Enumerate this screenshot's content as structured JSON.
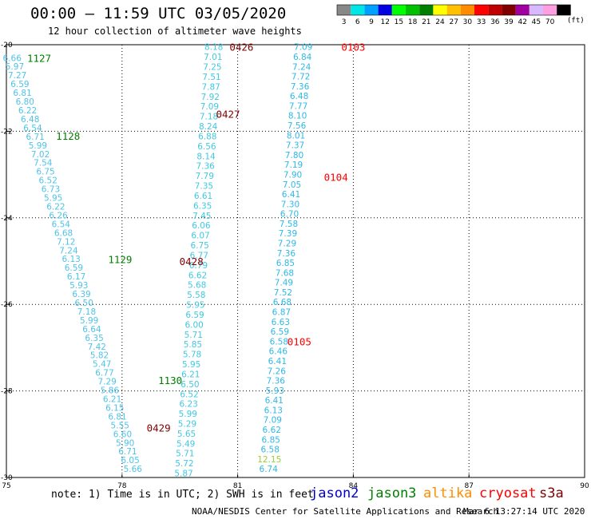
{
  "header": {
    "title": "00:00 – 11:59 UTC 03/05/2020",
    "subtitle": "12 hour collection of altimeter wave heights",
    "note": "note: 1) Time is in UTC; 2) SWH is in feet",
    "credit": "NOAA/NESDIS Center for Satellite Applications and Research",
    "timestamp": "Mar  6 13:27:14 UTC 2020"
  },
  "legend": {
    "unit": "(ft)",
    "bins": [
      {
        "label": "3",
        "color": "#888888"
      },
      {
        "label": "6",
        "color": "#00e5e5"
      },
      {
        "label": "9",
        "color": "#00a0ff"
      },
      {
        "label": "12",
        "color": "#0000e0"
      },
      {
        "label": "15",
        "color": "#00ff00"
      },
      {
        "label": "18",
        "color": "#00c000"
      },
      {
        "label": "21",
        "color": "#008000"
      },
      {
        "label": "24",
        "color": "#ffff00"
      },
      {
        "label": "27",
        "color": "#ffc000"
      },
      {
        "label": "30",
        "color": "#ff8c00"
      },
      {
        "label": "33",
        "color": "#ff0000"
      },
      {
        "label": "36",
        "color": "#c00000"
      },
      {
        "label": "39",
        "color": "#800000"
      },
      {
        "label": "42",
        "color": "#a000a0"
      },
      {
        "label": "45",
        "color": "#d8b8ff"
      },
      {
        "label": "70",
        "color": "#ff9ee0"
      },
      {
        "label": "",
        "color": "#000000"
      }
    ]
  },
  "satellites": [
    {
      "name": "jason2",
      "color": "#0000cc"
    },
    {
      "name": "jason3",
      "color": "#008000"
    },
    {
      "name": "altika",
      "color": "#ff8c00"
    },
    {
      "name": "cryosat",
      "color": "#ff0000"
    },
    {
      "name": "s3a",
      "color": "#800000"
    }
  ],
  "chart_data": {
    "type": "scatter",
    "xlim": [
      75,
      90
    ],
    "ylim": [
      -30,
      -20
    ],
    "x_ticks": [
      75,
      78,
      81,
      84,
      87,
      90
    ],
    "y_ticks": [
      -20,
      -22,
      -24,
      -26,
      -28,
      -30
    ],
    "grid": true,
    "tracks": [
      {
        "satellite": "jason3",
        "label_color": "#008000",
        "labels": [
          {
            "text": "1127",
            "lon": 75.85,
            "lat": -20.3
          },
          {
            "text": "1128",
            "lon": 76.6,
            "lat": -22.1
          },
          {
            "text": "1129",
            "lon": 77.95,
            "lat": -24.95
          },
          {
            "text": "1130",
            "lon": 79.25,
            "lat": -27.75
          }
        ],
        "start": [
          75.15,
          -20.3
        ],
        "end": [
          78.28,
          -29.8
        ],
        "values": [
          "6.66",
          "5.97",
          "7.27",
          "6.59",
          "6.81",
          "6.80",
          "6.22",
          "6.48",
          "6.54",
          "6.71",
          "5.99",
          "7.02",
          "7.54",
          "6.75",
          "6.52",
          "6.73",
          "5.95",
          "6.22",
          "6.26",
          "6.54",
          "6.68",
          "7.12",
          "7.24",
          "6.13",
          "6.59",
          "6.17",
          "5.93",
          "6.39",
          "6.50",
          "7.18",
          "5.99",
          "6.64",
          "6.35",
          "7.42",
          "5.82",
          "5.47",
          "6.77",
          "7.29",
          "5.86",
          "6.21",
          "6.15",
          "6.81",
          "5.55",
          "6.60",
          "5.90",
          "6.71",
          "6.05",
          "5.66"
        ]
      },
      {
        "satellite": "s3a",
        "label_color": "#800000",
        "labels": [
          {
            "text": "0426",
            "lon": 81.1,
            "lat": -20.05
          },
          {
            "text": "0427",
            "lon": 80.75,
            "lat": -21.6
          },
          {
            "text": "0428",
            "lon": 79.8,
            "lat": -25.0
          },
          {
            "text": "0429",
            "lon": 78.95,
            "lat": -28.85
          }
        ],
        "start": [
          80.38,
          -20.05
        ],
        "end": [
          79.6,
          -29.9
        ],
        "values": [
          "8.18",
          "7.01",
          "7.25",
          "7.51",
          "7.87",
          "7.92",
          "7.09",
          "7.18",
          "8.24",
          "6.88",
          "6.56",
          "8.14",
          "7.36",
          "7.79",
          "7.35",
          "6.61",
          "6.35",
          "7.45",
          "6.06",
          "6.07",
          "6.75",
          "6.77",
          "6.79",
          "6.62",
          "5.68",
          "5.58",
          "5.95",
          "6.59",
          "6.00",
          "5.71",
          "5.85",
          "5.78",
          "5.95",
          "6.21",
          "6.50",
          "6.52",
          "6.23",
          "5.99",
          "5.29",
          "5.65",
          "5.49",
          "5.71",
          "5.72",
          "5.87"
        ]
      },
      {
        "satellite": "cryosat",
        "label_color": "#ff0000",
        "labels": [
          {
            "text": "0103",
            "lon": 84.0,
            "lat": -20.05
          },
          {
            "text": "0104",
            "lon": 83.55,
            "lat": -23.05
          },
          {
            "text": "0105",
            "lon": 82.6,
            "lat": -26.85
          }
        ],
        "start": [
          82.7,
          -20.05
        ],
        "end": [
          81.8,
          -29.8
        ],
        "values": [
          "7.09",
          "6.84",
          "7.24",
          "7.72",
          "7.36",
          "6.48",
          "7.77",
          "8.10",
          "7.56",
          "8.01",
          "7.37",
          "7.80",
          "7.19",
          "7.90",
          "7.05",
          "6.41",
          "7.30",
          "6.70",
          "7.58",
          "7.39",
          "7.29",
          "7.36",
          "6.85",
          "7.68",
          "7.49",
          "7.52",
          "6.68",
          "6.87",
          "6.63",
          "6.59",
          "6.58",
          "6.46",
          "6.41",
          "7.26",
          "7.36",
          "5.93",
          "6.41",
          "6.13",
          "7.09",
          "6.62",
          "6.85",
          "6.58",
          "12.15",
          "6.74"
        ],
        "highlight_color": "#9acd32",
        "highlight_value": "12.15"
      }
    ]
  }
}
